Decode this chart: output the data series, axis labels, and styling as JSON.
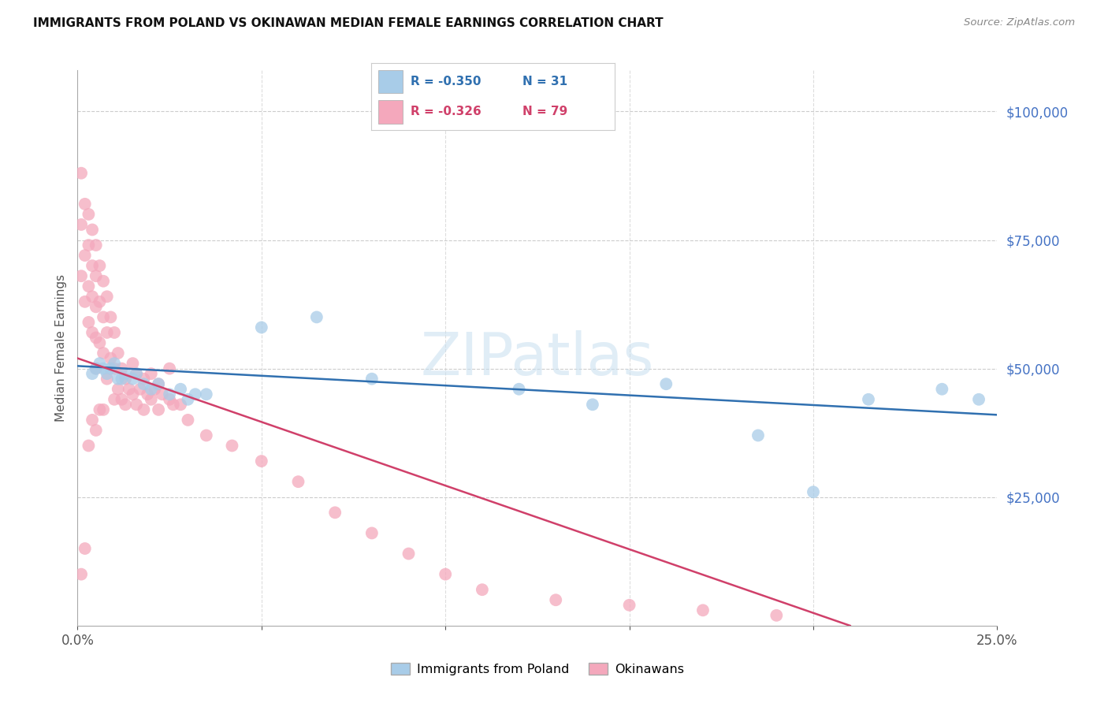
{
  "title": "IMMIGRANTS FROM POLAND VS OKINAWAN MEDIAN FEMALE EARNINGS CORRELATION CHART",
  "source": "Source: ZipAtlas.com",
  "ylabel": "Median Female Earnings",
  "ytick_values": [
    25000,
    50000,
    75000,
    100000
  ],
  "ylim": [
    0,
    108000
  ],
  "xlim": [
    0.0,
    0.25
  ],
  "legend_label1": "Immigrants from Poland",
  "legend_label2": "Okinawans",
  "legend_r1": "-0.350",
  "legend_n1": "31",
  "legend_r2": "-0.326",
  "legend_n2": "79",
  "watermark": "ZIPatlas",
  "blue_color": "#a8cce8",
  "pink_color": "#f4a8bc",
  "blue_line_color": "#3070b0",
  "pink_line_color": "#d0406a",
  "blue_scatter_x": [
    0.004,
    0.005,
    0.006,
    0.007,
    0.008,
    0.009,
    0.01,
    0.011,
    0.012,
    0.013,
    0.015,
    0.016,
    0.018,
    0.02,
    0.022,
    0.025,
    0.028,
    0.03,
    0.032,
    0.035,
    0.05,
    0.065,
    0.08,
    0.12,
    0.14,
    0.16,
    0.185,
    0.2,
    0.215,
    0.235,
    0.245
  ],
  "blue_scatter_y": [
    49000,
    50000,
    51000,
    50000,
    49000,
    50000,
    51000,
    48000,
    48000,
    49000,
    48000,
    49000,
    47000,
    46000,
    47000,
    45000,
    46000,
    44000,
    45000,
    45000,
    58000,
    60000,
    48000,
    46000,
    43000,
    47000,
    37000,
    26000,
    44000,
    46000,
    44000
  ],
  "pink_scatter_x": [
    0.001,
    0.001,
    0.001,
    0.002,
    0.002,
    0.002,
    0.003,
    0.003,
    0.003,
    0.003,
    0.004,
    0.004,
    0.004,
    0.004,
    0.005,
    0.005,
    0.005,
    0.005,
    0.005,
    0.006,
    0.006,
    0.006,
    0.007,
    0.007,
    0.007,
    0.008,
    0.008,
    0.008,
    0.009,
    0.009,
    0.01,
    0.01,
    0.01,
    0.011,
    0.011,
    0.012,
    0.012,
    0.013,
    0.013,
    0.014,
    0.015,
    0.015,
    0.016,
    0.016,
    0.017,
    0.018,
    0.018,
    0.019,
    0.02,
    0.02,
    0.021,
    0.022,
    0.022,
    0.023,
    0.025,
    0.025,
    0.026,
    0.028,
    0.03,
    0.035,
    0.042,
    0.05,
    0.06,
    0.07,
    0.08,
    0.09,
    0.1,
    0.11,
    0.13,
    0.15,
    0.17,
    0.19,
    0.001,
    0.002,
    0.003,
    0.004,
    0.005,
    0.006,
    0.007
  ],
  "pink_scatter_y": [
    88000,
    78000,
    68000,
    82000,
    72000,
    63000,
    80000,
    74000,
    66000,
    59000,
    77000,
    70000,
    64000,
    57000,
    74000,
    68000,
    62000,
    56000,
    50000,
    70000,
    63000,
    55000,
    67000,
    60000,
    53000,
    64000,
    57000,
    48000,
    60000,
    52000,
    57000,
    50000,
    44000,
    53000,
    46000,
    50000,
    44000,
    48000,
    43000,
    46000,
    51000,
    45000,
    49000,
    43000,
    46000,
    48000,
    42000,
    45000,
    49000,
    44000,
    46000,
    47000,
    42000,
    45000,
    50000,
    44000,
    43000,
    43000,
    40000,
    37000,
    35000,
    32000,
    28000,
    22000,
    18000,
    14000,
    10000,
    7000,
    5000,
    4000,
    3000,
    2000,
    10000,
    15000,
    35000,
    40000,
    38000,
    42000,
    42000
  ],
  "blue_trend_x": [
    0.0,
    0.25
  ],
  "blue_trend_y": [
    50500,
    41000
  ],
  "pink_trend_x": [
    0.0,
    0.21
  ],
  "pink_trend_y": [
    52000,
    0
  ]
}
